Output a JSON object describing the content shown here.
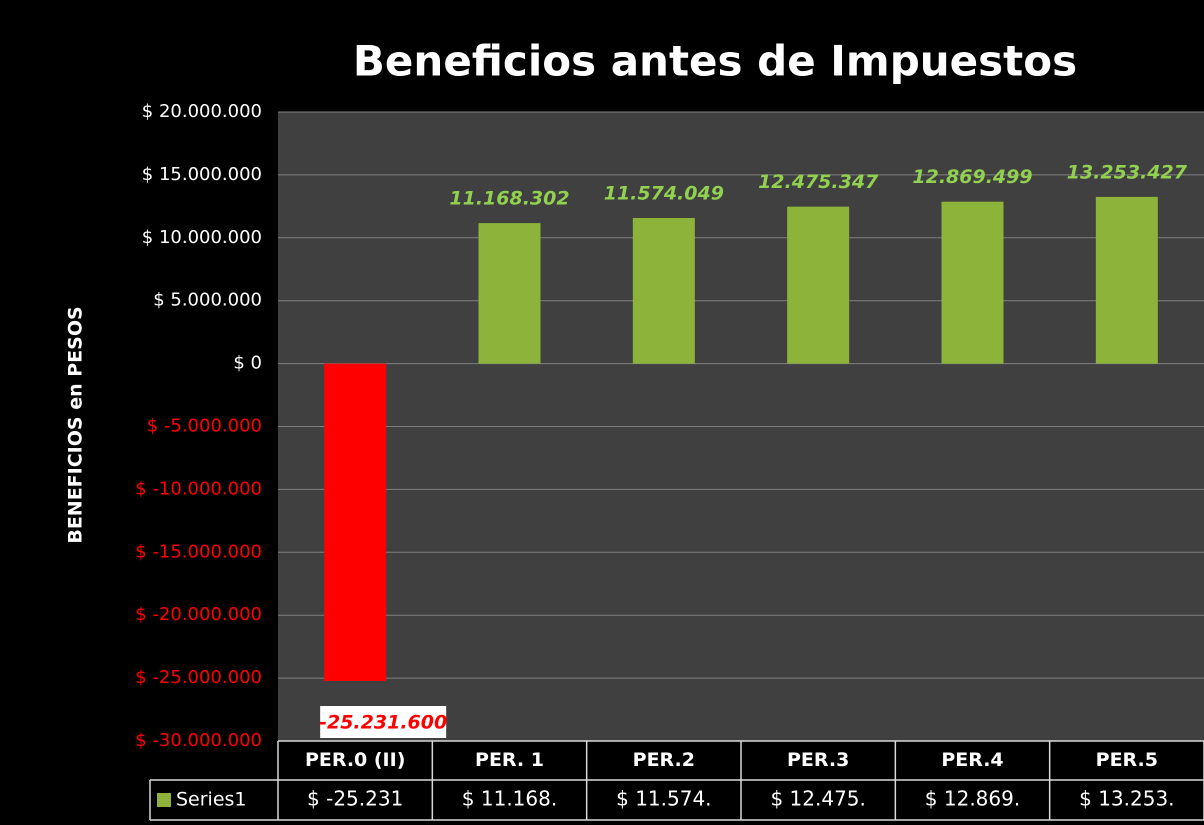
{
  "chart_data": {
    "type": "bar",
    "title": "Beneficios antes de Impuestos",
    "y_axis_label": "BENEFICIOS en  PESOS",
    "categories": [
      "PER.0 (II)",
      "PER. 1",
      "PER.2",
      "PER.3",
      "PER.4",
      "PER.5"
    ],
    "series": [
      {
        "name": "Series1",
        "color": "#8db33a",
        "negative_color": "#ff0000",
        "values": [
          -25231600,
          11168302,
          11574049,
          12475347,
          12869499,
          13253427
        ],
        "value_labels": [
          "-25.231.600",
          "11.168.302",
          "11.574.049",
          "12.475.347",
          "12.869.499",
          "13.253.427"
        ],
        "table_labels": [
          "$ -25.231",
          "$ 11.168.",
          "$ 11.574.",
          "$ 12.475.",
          "$ 12.869.",
          "$ 13.253."
        ]
      }
    ],
    "ylim": [
      -30000000,
      20000000
    ],
    "yticks": [
      {
        "value": -30000000,
        "label": "$ -30.000.000"
      },
      {
        "value": -25000000,
        "label": "$ -25.000.000"
      },
      {
        "value": -20000000,
        "label": "$ -20.000.000"
      },
      {
        "value": -15000000,
        "label": "$ -15.000.000"
      },
      {
        "value": -10000000,
        "label": "$ -10.000.000"
      },
      {
        "value": -5000000,
        "label": "$ -5.000.000"
      },
      {
        "value": 0,
        "label": "$ 0"
      },
      {
        "value": 5000000,
        "label": "$ 5.000.000"
      },
      {
        "value": 10000000,
        "label": "$ 10.000.000"
      },
      {
        "value": 15000000,
        "label": "$ 15.000.000"
      },
      {
        "value": 20000000,
        "label": "$ 20.000.000"
      }
    ],
    "grid": true,
    "data_table": true
  }
}
